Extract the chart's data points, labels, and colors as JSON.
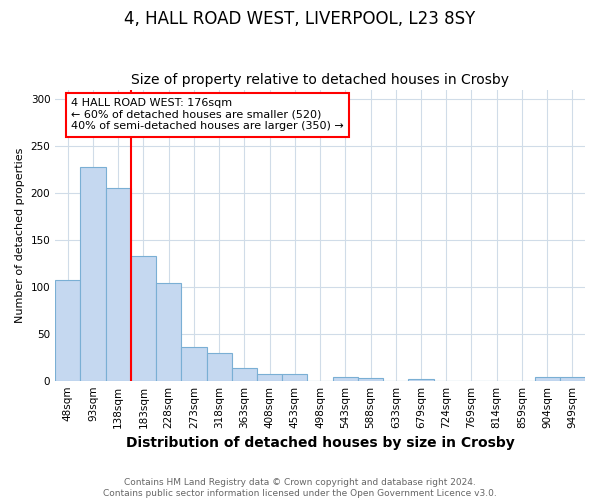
{
  "title1": "4, HALL ROAD WEST, LIVERPOOL, L23 8SY",
  "title2": "Size of property relative to detached houses in Crosby",
  "xlabel": "Distribution of detached houses by size in Crosby",
  "ylabel": "Number of detached properties",
  "categories": [
    "48sqm",
    "93sqm",
    "138sqm",
    "183sqm",
    "228sqm",
    "273sqm",
    "318sqm",
    "363sqm",
    "408sqm",
    "453sqm",
    "498sqm",
    "543sqm",
    "588sqm",
    "633sqm",
    "679sqm",
    "724sqm",
    "769sqm",
    "814sqm",
    "859sqm",
    "904sqm",
    "949sqm"
  ],
  "values": [
    107,
    228,
    205,
    133,
    104,
    36,
    30,
    13,
    7,
    7,
    0,
    4,
    3,
    0,
    2,
    0,
    0,
    0,
    0,
    4,
    4
  ],
  "bar_color": "#c5d8f0",
  "bar_edge_color": "#7aafd4",
  "vline_color": "red",
  "vline_x": 3.0,
  "annotation_text": "4 HALL ROAD WEST: 176sqm\n← 60% of detached houses are smaller (520)\n40% of semi-detached houses are larger (350) →",
  "ylim": [
    0,
    310
  ],
  "yticks": [
    0,
    50,
    100,
    150,
    200,
    250,
    300
  ],
  "footer": "Contains HM Land Registry data © Crown copyright and database right 2024.\nContains public sector information licensed under the Open Government Licence v3.0.",
  "background_color": "#ffffff",
  "plot_bg_color": "#ffffff",
  "grid_color": "#d0dce8",
  "title1_fontsize": 12,
  "title2_fontsize": 10,
  "xlabel_fontsize": 10,
  "ylabel_fontsize": 8,
  "tick_fontsize": 7.5,
  "annotation_fontsize": 8,
  "footer_fontsize": 6.5
}
